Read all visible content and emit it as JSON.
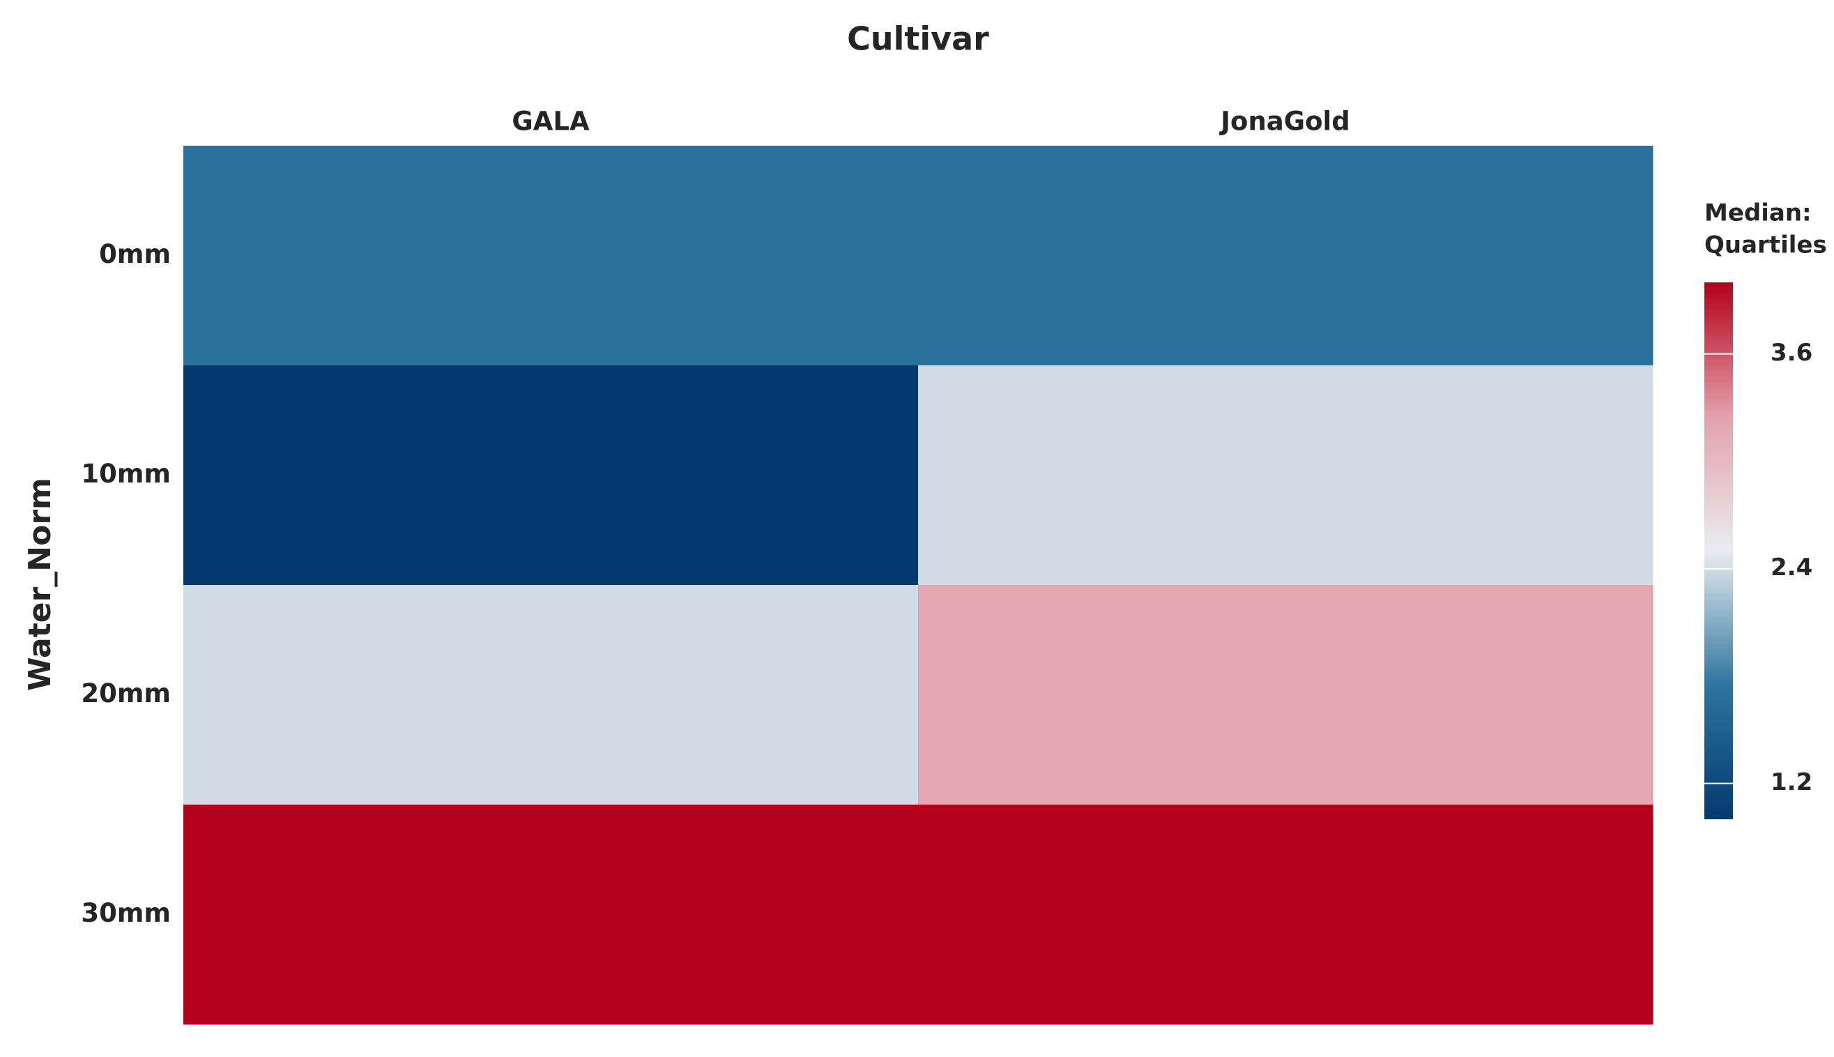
{
  "chart_data": {
    "type": "heatmap",
    "title": "Cultivar",
    "x_categories": [
      "GALA",
      "JonaGold"
    ],
    "y_categories": [
      "0mm",
      "10mm",
      "20mm",
      "30mm"
    ],
    "y_label": "Water_Norm",
    "values": [
      [
        1.7,
        1.7
      ],
      [
        1.0,
        2.4
      ],
      [
        2.4,
        3.2
      ],
      [
        4.0,
        4.0
      ]
    ],
    "colorscale": [
      "#023a70",
      "#2e75a0",
      "#e9ecef",
      "#e3a0aa",
      "#b5001a"
    ],
    "clim": [
      1.0,
      4.0
    ],
    "cticks": [
      1.2,
      2.4,
      3.6
    ],
    "colorbar_title": [
      "Median:",
      "Quartiles"
    ]
  }
}
